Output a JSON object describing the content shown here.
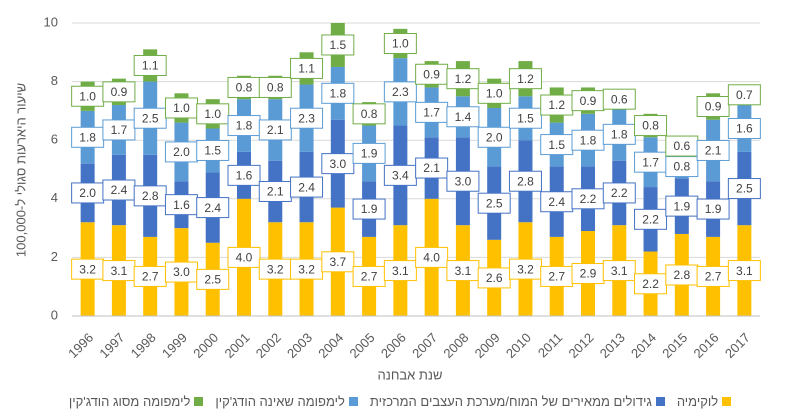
{
  "chart_data": {
    "type": "stacked-bar",
    "y_label": "שיעור היארעות סגולי ל-100,000",
    "x_label": "שנת אבחנה",
    "categories": [
      "1996",
      "1997",
      "1998",
      "1999",
      "2000",
      "2001",
      "2002",
      "2003",
      "2004",
      "2005",
      "2006",
      "2007",
      "2008",
      "2009",
      "2010",
      "2011",
      "2012",
      "2013",
      "2014",
      "2015",
      "2016",
      "2017"
    ],
    "series": [
      {
        "name": "לוקימיה",
        "color": "#FFC000",
        "values": [
          3.2,
          3.1,
          2.7,
          3.0,
          2.5,
          4.0,
          3.2,
          3.2,
          3.7,
          2.7,
          3.1,
          4.0,
          3.1,
          2.6,
          3.2,
          2.7,
          2.9,
          3.1,
          2.2,
          2.8,
          2.7,
          3.1
        ],
        "value_labels": [
          "3.2",
          "3.1",
          "2.7",
          "3.0",
          "2.5",
          "4.0",
          "3.2",
          "3.2",
          "3.7",
          "2.7",
          "3.1",
          "4.0",
          "3.1",
          "2.6",
          "3.2",
          "2.7",
          "2.9",
          "3.1",
          "2.2",
          "2.8",
          "2.7",
          "3.1"
        ]
      },
      {
        "name": "גידולים ממאירים של המוח/מערכת העצבים המרכזית",
        "color": "#4472C4",
        "values": [
          2.0,
          2.4,
          2.8,
          1.6,
          2.4,
          1.6,
          2.1,
          2.4,
          3.0,
          1.9,
          3.4,
          2.1,
          3.0,
          2.5,
          2.8,
          2.4,
          2.2,
          2.2,
          2.2,
          1.9,
          1.9,
          2.5
        ],
        "value_labels": [
          "2.0",
          "2.4",
          "2.8",
          "1.6",
          "2.4",
          "1.6",
          "2.1",
          "2.4",
          "3.0",
          "1.9",
          "3.4",
          "2.1",
          "3.0",
          "2.5",
          "2.8",
          "2.4",
          "2.2",
          "2.2",
          "2.2",
          "1.9",
          "1.9",
          "2.5"
        ]
      },
      {
        "name": "לימפומה שאינה הודג'קין",
        "color": "#5B9BD5",
        "values": [
          1.8,
          1.7,
          2.5,
          2.0,
          1.5,
          1.8,
          2.1,
          2.3,
          1.8,
          1.9,
          2.3,
          1.7,
          1.4,
          2.0,
          1.5,
          1.5,
          1.8,
          1.8,
          1.7,
          0.8,
          2.1,
          1.6
        ],
        "value_labels": [
          "1.8",
          "1.7",
          "2.5",
          "2.0",
          "1.5",
          "1.8",
          "2.1",
          "2.3",
          "1.8",
          "1.9",
          "2.3",
          "1.7",
          "1.4",
          "2.0",
          "1.5",
          "1.5",
          "1.8",
          "1.8",
          "1.7",
          "0.8",
          "2.1",
          "1.6"
        ]
      },
      {
        "name": "לימפומה מסוג הודג'קין",
        "color": "#70AD47",
        "values": [
          1.0,
          0.9,
          1.1,
          1.0,
          1.0,
          0.8,
          0.8,
          1.1,
          1.5,
          0.8,
          1.0,
          0.9,
          1.2,
          1.0,
          1.2,
          1.2,
          0.9,
          0.6,
          0.8,
          0.6,
          0.9,
          0.7
        ],
        "value_labels": [
          "1.0",
          "0.9",
          "1.1",
          "1.0",
          "1.0",
          "0.8",
          "0.8",
          "1.1",
          "1.5",
          "0.8",
          "1.0",
          "0.9",
          "1.2",
          "1.0",
          "1.2",
          "1.2",
          "0.9",
          "0.6",
          "0.8",
          "0.6",
          "0.9",
          "0.7"
        ]
      }
    ],
    "ylim": [
      0,
      10
    ],
    "yticks": [
      0,
      2,
      4,
      6,
      8,
      10
    ],
    "grid": true,
    "legend": "bottom"
  }
}
